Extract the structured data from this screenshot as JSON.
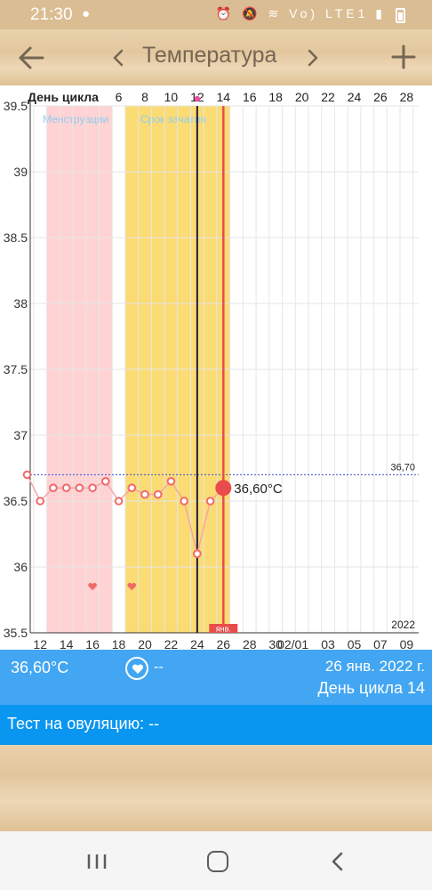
{
  "status_bar": {
    "time": "21:30",
    "icons_text": "⏰ 🔕 ≋ Vo) LTE1 ▮"
  },
  "app_bar": {
    "title": "Температура",
    "back_icon": "arrow-left-icon",
    "prev_icon": "chevron-left-icon",
    "next_icon": "chevron-right-icon",
    "add_icon": "plus-icon"
  },
  "chart_data": {
    "type": "line",
    "top_axis_label": "День цикла",
    "cycle_days": [
      6,
      8,
      10,
      12,
      14,
      16,
      18,
      20,
      22,
      24,
      26,
      28
    ],
    "bottom_ticks": [
      "12",
      "14",
      "16",
      "18",
      "20",
      "22",
      "24",
      "26",
      "28",
      "30",
      "02/01",
      "03",
      "05",
      "07",
      "09"
    ],
    "year_label": "2022",
    "month_marker": "янв.",
    "ylim": [
      35.5,
      39.5
    ],
    "y_ticks": [
      "39.5",
      "39",
      "38.5",
      "38",
      "37.5",
      "37",
      "36.5",
      "36",
      "35.5"
    ],
    "coverline": {
      "value": 36.7,
      "label": "36,70"
    },
    "zones": [
      {
        "label": "Менструации",
        "from": "13",
        "to": "17",
        "color": "#ffd3d3",
        "label_color": "#8ecdf0"
      },
      {
        "label": "Срок зачатия",
        "from": "19",
        "to": "26",
        "color": "#fbdb73",
        "label_color": "#8ecdf0"
      }
    ],
    "series": [
      {
        "x": [
          "11",
          "12",
          "13",
          "14",
          "15",
          "16",
          "17",
          "18",
          "19",
          "20",
          "21",
          "22",
          "23",
          "24",
          "25",
          "26"
        ],
        "values": [
          36.7,
          36.5,
          36.6,
          36.6,
          36.6,
          36.6,
          36.65,
          36.5,
          36.6,
          36.55,
          36.55,
          36.65,
          36.5,
          36.1,
          36.5,
          36.6
        ],
        "color": "#f06a6a"
      }
    ],
    "selected": {
      "x": "26",
      "value_label": "36,60°C"
    },
    "today_marker_x": "24",
    "intercourse_days": [
      "16",
      "19"
    ],
    "intercourse_value": 35.85
  },
  "info": {
    "temp": "36,60°C",
    "heart_value": "--",
    "date": "26 янв. 2022 г.",
    "cycle_day": "День цикла 14"
  },
  "test": {
    "label": "Тест на овуляцию: --"
  },
  "colors": {
    "accent_blue": "#42a6f2",
    "test_blue": "#0996f0",
    "wood": "#e3c79e",
    "line": "#f06a6a"
  }
}
